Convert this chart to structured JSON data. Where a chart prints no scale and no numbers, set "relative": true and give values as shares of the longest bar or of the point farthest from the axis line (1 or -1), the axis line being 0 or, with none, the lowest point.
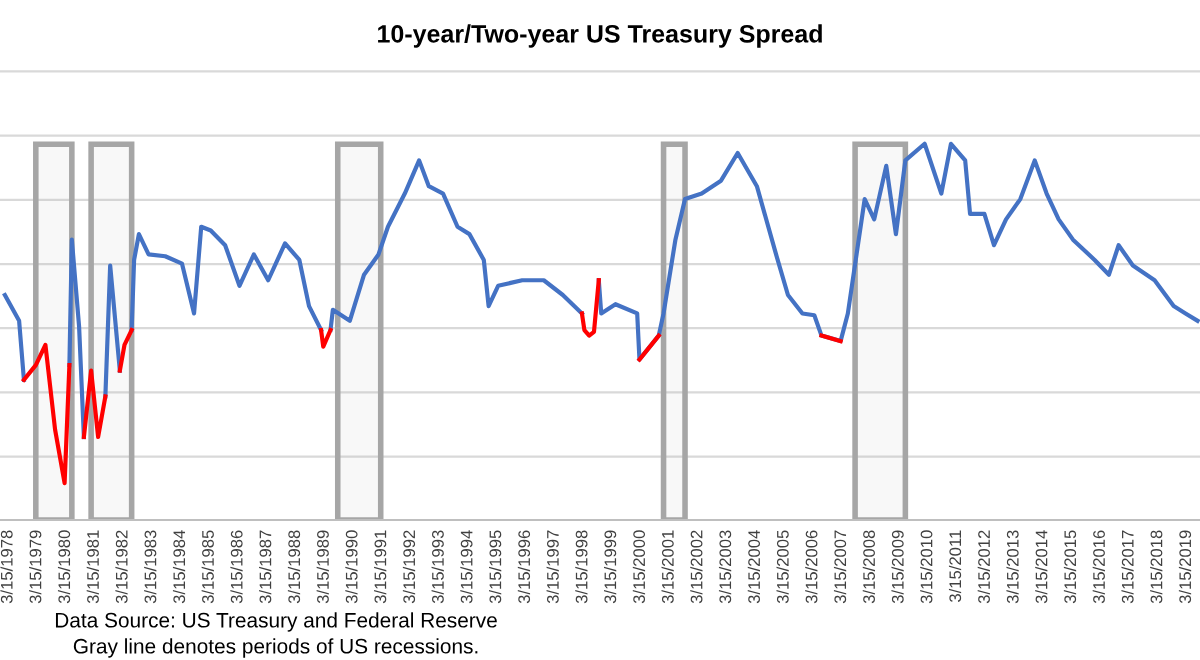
{
  "chart_data": {
    "type": "line",
    "title": "10-year/Two-year US Treasury Spread",
    "relative": true,
    "grid": "y",
    "tick_labels": "x",
    "legend": false,
    "marker": "none",
    "line_style": "solid",
    "x": [
      "1978-02",
      "1978-08",
      "1978-10",
      "1979-03",
      "1979-07",
      "1979-11",
      "1980-03",
      "1980-05",
      "1980-06",
      "1980-09",
      "1980-11",
      "1981-02",
      "1981-05",
      "1981-08",
      "1981-10",
      "1982-02",
      "1982-04",
      "1982-07",
      "1982-08",
      "1982-10",
      "1983-02",
      "1983-09",
      "1984-04",
      "1984-09",
      "1984-12",
      "1985-04",
      "1985-10",
      "1986-04",
      "1986-10",
      "1987-04",
      "1987-11",
      "1988-05",
      "1988-09",
      "1989-02",
      "1989-03",
      "1989-06",
      "1989-07",
      "1990-02",
      "1990-08",
      "1991-02",
      "1991-06",
      "1992-01",
      "1992-07",
      "1992-11",
      "1993-05",
      "1993-11",
      "1994-04",
      "1994-10",
      "1994-12",
      "1995-04",
      "1996-02",
      "1996-11",
      "1997-07",
      "1998-03",
      "1998-04",
      "1998-06",
      "1998-08",
      "1998-10",
      "1998-11",
      "1999-05",
      "2000-02",
      "2000-03",
      "2000-11",
      "2001-01",
      "2001-06",
      "2001-10",
      "2002-05",
      "2003-01",
      "2003-08",
      "2004-04",
      "2004-12",
      "2005-05",
      "2005-11",
      "2006-04",
      "2006-07",
      "2007-03",
      "2007-06",
      "2008-01",
      "2008-05",
      "2008-10",
      "2009-02",
      "2009-06",
      "2010-02",
      "2010-09",
      "2011-01",
      "2011-07",
      "2011-09",
      "2012-03",
      "2012-07",
      "2012-12",
      "2013-06",
      "2013-12",
      "2014-05",
      "2014-10",
      "2015-04",
      "2016-01",
      "2016-07",
      "2016-11",
      "2017-05",
      "2018-02",
      "2018-10",
      "2019-03",
      "2019-08"
    ],
    "series": [
      {
        "color": "#4472c4",
        "values": [
          0.18,
          0.04,
          -0.28,
          null,
          null,
          null,
          null,
          -0.2,
          0.48,
          0.01,
          -0.59,
          null,
          null,
          -0.37,
          0.34,
          -0.23,
          null,
          -0.01,
          0.37,
          0.51,
          0.4,
          0.39,
          0.35,
          0.08,
          0.55,
          0.53,
          0.45,
          0.23,
          0.4,
          0.26,
          0.46,
          0.37,
          0.12,
          -0.01,
          null,
          -0.01,
          0.1,
          0.04,
          0.29,
          0.4,
          0.55,
          0.73,
          0.91,
          0.77,
          0.73,
          0.55,
          0.51,
          0.37,
          0.12,
          0.23,
          0.26,
          0.26,
          0.18,
          0.08,
          null,
          null,
          null,
          0.26,
          0.08,
          0.13,
          0.08,
          -0.17,
          -0.04,
          0.08,
          0.48,
          0.7,
          0.73,
          0.8,
          0.95,
          0.77,
          0.4,
          0.18,
          0.08,
          0.07,
          -0.04,
          -0.07,
          0.08,
          0.7,
          0.59,
          0.88,
          0.51,
          0.91,
          1,
          0.73,
          1,
          0.91,
          0.62,
          0.62,
          0.45,
          0.59,
          0.7,
          0.91,
          0.73,
          0.59,
          0.48,
          0.37,
          0.29,
          0.45,
          0.34,
          0.26,
          0.12,
          0.08,
          0.04
        ]
      },
      {
        "color": "#ff0000",
        "values": [
          null,
          null,
          -0.28,
          -0.2,
          -0.09,
          -0.55,
          -0.84,
          -0.2,
          null,
          null,
          -0.59,
          -0.23,
          -0.59,
          -0.37,
          null,
          -0.23,
          -0.09,
          -0.01,
          null,
          null,
          null,
          null,
          null,
          null,
          null,
          null,
          null,
          null,
          null,
          null,
          null,
          null,
          null,
          -0.01,
          -0.1,
          -0.01,
          null,
          null,
          null,
          null,
          null,
          null,
          null,
          null,
          null,
          null,
          null,
          null,
          null,
          null,
          null,
          null,
          null,
          0.08,
          -0.01,
          -0.04,
          -0.02,
          0.26,
          null,
          null,
          null,
          -0.17,
          -0.04,
          null,
          null,
          null,
          null,
          null,
          null,
          null,
          null,
          null,
          null,
          null,
          -0.04,
          -0.07,
          null,
          null,
          null,
          null,
          null,
          null,
          null,
          null,
          null,
          null,
          null,
          null,
          null,
          null,
          null,
          null,
          null,
          null,
          null,
          null,
          null,
          null,
          null,
          null,
          null,
          null,
          null
        ]
      }
    ],
    "xlim": [
      "1977-12-01",
      "2019-09-01"
    ],
    "xticks": [
      {
        "value": "1978-03-15",
        "label": "3/15/1978"
      },
      {
        "value": "1979-03-15",
        "label": "3/15/1979"
      },
      {
        "value": "1980-03-15",
        "label": "3/15/1980"
      },
      {
        "value": "1981-03-15",
        "label": "3/15/1981"
      },
      {
        "value": "1982-03-15",
        "label": "3/15/1982"
      },
      {
        "value": "1983-03-15",
        "label": "3/15/1983"
      },
      {
        "value": "1984-03-15",
        "label": "3/15/1984"
      },
      {
        "value": "1985-03-15",
        "label": "3/15/1985"
      },
      {
        "value": "1986-03-15",
        "label": "3/15/1986"
      },
      {
        "value": "1987-03-15",
        "label": "3/15/1987"
      },
      {
        "value": "1988-03-15",
        "label": "3/15/1988"
      },
      {
        "value": "1989-03-15",
        "label": "3/15/1989"
      },
      {
        "value": "1990-03-15",
        "label": "3/15/1990"
      },
      {
        "value": "1991-03-15",
        "label": "3/15/1991"
      },
      {
        "value": "1992-03-15",
        "label": "3/15/1992"
      },
      {
        "value": "1993-03-15",
        "label": "3/15/1993"
      },
      {
        "value": "1994-03-15",
        "label": "3/15/1994"
      },
      {
        "value": "1995-03-15",
        "label": "3/15/1995"
      },
      {
        "value": "1996-03-15",
        "label": "3/15/1996"
      },
      {
        "value": "1997-03-15",
        "label": "3/15/1997"
      },
      {
        "value": "1998-03-15",
        "label": "3/15/1998"
      },
      {
        "value": "1999-03-15",
        "label": "3/15/1999"
      },
      {
        "value": "2000-03-15",
        "label": "3/15/2000"
      },
      {
        "value": "2001-03-15",
        "label": "3/15/2001"
      },
      {
        "value": "2002-03-15",
        "label": "3/15/2002"
      },
      {
        "value": "2003-03-15",
        "label": "3/15/2003"
      },
      {
        "value": "2004-03-15",
        "label": "3/15/2004"
      },
      {
        "value": "2005-03-15",
        "label": "3/15/2005"
      },
      {
        "value": "2006-03-15",
        "label": "3/15/2006"
      },
      {
        "value": "2007-03-15",
        "label": "3/15/2007"
      },
      {
        "value": "2008-03-15",
        "label": "3/15/2008"
      },
      {
        "value": "2009-03-15",
        "label": "3/15/2009"
      },
      {
        "value": "2010-03-15",
        "label": "3/15/2010"
      },
      {
        "value": "2011-03-15",
        "label": "3/15/2011"
      },
      {
        "value": "2012-03-15",
        "label": "3/15/2012"
      },
      {
        "value": "2013-03-15",
        "label": "3/15/2013"
      },
      {
        "value": "2014-03-15",
        "label": "3/15/2014"
      },
      {
        "value": "2015-03-15",
        "label": "3/15/2015"
      },
      {
        "value": "2016-03-15",
        "label": "3/15/2016"
      },
      {
        "value": "2017-03-15",
        "label": "3/15/2017"
      },
      {
        "value": "2018-03-15",
        "label": "3/15/2018"
      },
      {
        "value": "2019-03-15",
        "label": "3/15/2019"
      }
    ],
    "bands": [
      {
        "axis": "x",
        "from": "1979-03",
        "to": "1980-06",
        "color": "#a6a6a6"
      },
      {
        "axis": "x",
        "from": "1981-02",
        "to": "1982-07",
        "color": "#a6a6a6"
      },
      {
        "axis": "x",
        "from": "1989-09",
        "to": "1991-03",
        "color": "#a6a6a6"
      },
      {
        "axis": "x",
        "from": "2001-01",
        "to": "2001-10",
        "color": "#a6a6a6"
      },
      {
        "axis": "x",
        "from": "2007-09",
        "to": "2009-06",
        "color": "#a6a6a6"
      }
    ],
    "annotations": [
      "Data Source: US Treasury and Federal Reserve",
      "Gray line denotes periods of US recessions."
    ]
  }
}
